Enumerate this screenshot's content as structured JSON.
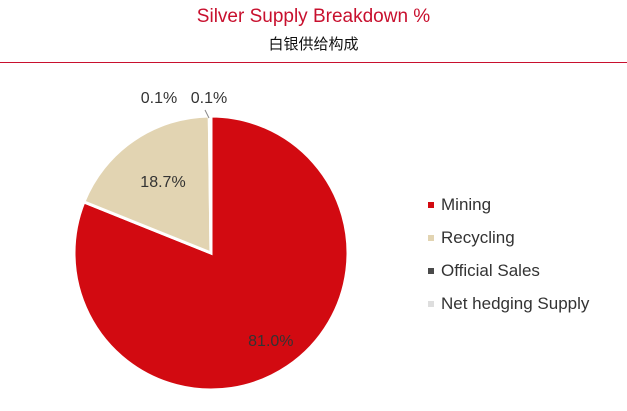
{
  "title": "Silver Supply Breakdown %",
  "subtitle": "白银供给构成",
  "colors": {
    "accent": "#c8102e",
    "mining": "#d20a11",
    "recycling": "#e2d4b2",
    "official_sales": "#4a4a4a",
    "net_hedging": "#dedede"
  },
  "chart_data": {
    "type": "pie",
    "categories": [
      "Mining",
      "Recycling",
      "Official Sales",
      "Net hedging Supply"
    ],
    "values": [
      81.0,
      18.7,
      0.1,
      0.1
    ],
    "labels": [
      "81.0%",
      "18.7%",
      "0.1%",
      "0.1%"
    ],
    "title": "Silver Supply Breakdown %",
    "subtitle": "白银供给构成",
    "legend_position": "right"
  },
  "legend": [
    {
      "label": "Mining",
      "color": "#d20a11"
    },
    {
      "label": "Recycling",
      "color": "#e2d4b2"
    },
    {
      "label": "Official Sales",
      "color": "#4a4a4a"
    },
    {
      "label": "Net hedging Supply",
      "color": "#dedede"
    }
  ]
}
